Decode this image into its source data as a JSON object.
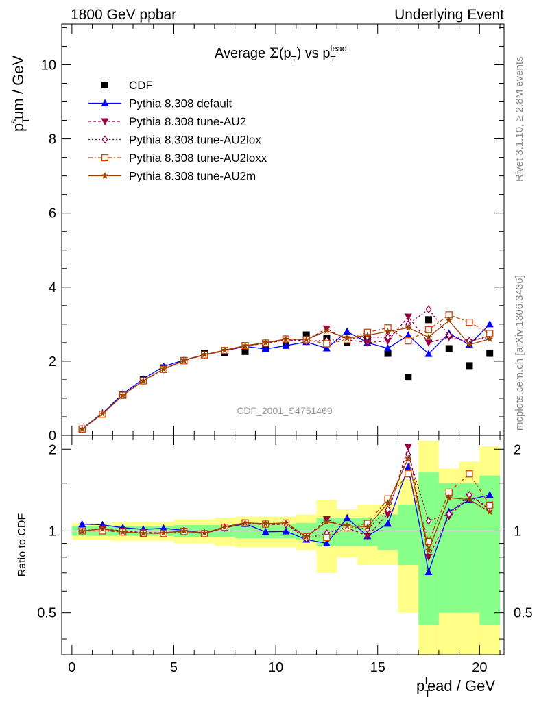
{
  "header": {
    "left": "1800 GeV ppbar",
    "right": "Underlying Event",
    "rivet": "Rivet 3.1.10, ≥ 2.8M events",
    "mcplots": "mcplots.cern.ch [arXiv:1306.3436]"
  },
  "chart_data": {
    "type": "line",
    "title": "Average Σ(pT) vs pT lead",
    "analysis_label": "CDF_2001_S4751469",
    "ylabel": "pT sum / GeV",
    "xlabel": "pT lead / GeV",
    "ratio_ylabel": "Ratio to CDF",
    "xlim": [
      -0.5,
      21.2
    ],
    "ylim": [
      0,
      11.1
    ],
    "ratio_ylim": [
      0.35,
      2.25
    ],
    "xticks": [
      0,
      5,
      10,
      15,
      20
    ],
    "yticks": [
      0,
      2,
      4,
      6,
      8,
      10
    ],
    "ratio_yticks": [
      0.5,
      1,
      2
    ],
    "ratio_band_x_edges": [
      0,
      1,
      2,
      3,
      4,
      5,
      6,
      7,
      8,
      9,
      10,
      11,
      12,
      13,
      14,
      15,
      16,
      17,
      18,
      19,
      20,
      21
    ],
    "ratio_band_green": [
      [
        0.96,
        1.04
      ],
      [
        0.96,
        1.04
      ],
      [
        0.96,
        1.04
      ],
      [
        0.96,
        1.04
      ],
      [
        0.96,
        1.04
      ],
      [
        0.95,
        1.05
      ],
      [
        0.95,
        1.05
      ],
      [
        0.95,
        1.05
      ],
      [
        0.94,
        1.06
      ],
      [
        0.94,
        1.06
      ],
      [
        0.94,
        1.06
      ],
      [
        0.93,
        1.07
      ],
      [
        0.88,
        1.12
      ],
      [
        0.88,
        1.12
      ],
      [
        0.88,
        1.12
      ],
      [
        0.85,
        1.15
      ],
      [
        0.75,
        1.25
      ],
      [
        0.45,
        1.65
      ],
      [
        0.5,
        1.5
      ],
      [
        0.5,
        1.5
      ],
      [
        0.45,
        1.6
      ]
    ],
    "ratio_band_yellow": [
      [
        0.93,
        1.07
      ],
      [
        0.93,
        1.07
      ],
      [
        0.92,
        1.08
      ],
      [
        0.92,
        1.08
      ],
      [
        0.92,
        1.08
      ],
      [
        0.9,
        1.1
      ],
      [
        0.9,
        1.1
      ],
      [
        0.88,
        1.12
      ],
      [
        0.87,
        1.13
      ],
      [
        0.87,
        1.13
      ],
      [
        0.87,
        1.13
      ],
      [
        0.85,
        1.15
      ],
      [
        0.7,
        1.3
      ],
      [
        0.8,
        1.2
      ],
      [
        0.75,
        1.25
      ],
      [
        0.75,
        1.25
      ],
      [
        0.5,
        1.55
      ],
      [
        0.3,
        2.15
      ],
      [
        0.35,
        1.7
      ],
      [
        0.35,
        1.8
      ],
      [
        0.25,
        2.05
      ]
    ],
    "series": [
      {
        "name": "CDF",
        "color": "#000000",
        "marker": "square-filled",
        "dash": "none",
        "x": [
          0.5,
          1.5,
          2.5,
          3.5,
          4.5,
          5.5,
          6.5,
          7.5,
          8.5,
          9.5,
          10.5,
          11.5,
          12.5,
          13.5,
          14.5,
          15.5,
          16.5,
          17.5,
          18.5,
          19.5,
          20.5
        ],
        "y": [
          0.17,
          0.57,
          1.09,
          1.5,
          1.82,
          2.02,
          2.22,
          2.22,
          2.26,
          2.35,
          2.43,
          2.71,
          2.61,
          2.51,
          2.61,
          2.21,
          1.57,
          3.12,
          2.34,
          1.88,
          2.21
        ]
      },
      {
        "name": "Pythia 8.308 default",
        "color": "#0000ff",
        "marker": "triangle-up-filled",
        "dash": "none",
        "x": [
          0.5,
          1.5,
          2.5,
          3.5,
          4.5,
          5.5,
          6.5,
          7.5,
          8.5,
          9.5,
          10.5,
          11.5,
          12.5,
          13.5,
          14.5,
          15.5,
          16.5,
          17.5,
          18.5,
          19.5,
          20.5
        ],
        "y": [
          0.18,
          0.6,
          1.12,
          1.52,
          1.86,
          2.03,
          2.18,
          2.28,
          2.4,
          2.33,
          2.42,
          2.52,
          2.35,
          2.8,
          2.5,
          2.35,
          2.7,
          2.2,
          2.75,
          2.45,
          3.0
        ]
      },
      {
        "name": "Pythia 8.308 tune-AU2",
        "color": "#990044",
        "marker": "triangle-down-filled",
        "dash": "4,3",
        "x": [
          0.5,
          1.5,
          2.5,
          3.5,
          4.5,
          5.5,
          6.5,
          7.5,
          8.5,
          9.5,
          10.5,
          11.5,
          12.5,
          13.5,
          14.5,
          15.5,
          16.5,
          17.5,
          18.5,
          19.5,
          20.5
        ],
        "y": [
          0.17,
          0.58,
          1.09,
          1.48,
          1.79,
          2.02,
          2.17,
          2.28,
          2.41,
          2.48,
          2.57,
          2.57,
          2.88,
          2.58,
          2.5,
          2.55,
          3.2,
          2.5,
          2.65,
          2.52,
          2.7
        ]
      },
      {
        "name": "Pythia 8.308 tune-AU2lox",
        "color": "#990044",
        "marker": "diamond-open",
        "dash": "2,3",
        "x": [
          0.5,
          1.5,
          2.5,
          3.5,
          4.5,
          5.5,
          6.5,
          7.5,
          8.5,
          9.5,
          10.5,
          11.5,
          12.5,
          13.5,
          14.5,
          15.5,
          16.5,
          17.5,
          18.5,
          19.5,
          20.5
        ],
        "y": [
          0.17,
          0.58,
          1.08,
          1.47,
          1.78,
          2.02,
          2.17,
          2.28,
          2.41,
          2.49,
          2.57,
          2.54,
          2.56,
          2.6,
          2.65,
          2.65,
          3.0,
          3.4,
          2.7,
          2.55,
          2.65
        ]
      },
      {
        "name": "Pythia 8.308 tune-AU2loxx",
        "color": "#cc4400",
        "marker": "square-open",
        "dash": "6,3,2,3",
        "x": [
          0.5,
          1.5,
          2.5,
          3.5,
          4.5,
          5.5,
          6.5,
          7.5,
          8.5,
          9.5,
          10.5,
          11.5,
          12.5,
          13.5,
          14.5,
          15.5,
          16.5,
          17.5,
          18.5,
          19.5,
          20.5
        ],
        "y": [
          0.17,
          0.57,
          1.08,
          1.47,
          1.78,
          2.01,
          2.17,
          2.29,
          2.42,
          2.49,
          2.6,
          2.58,
          2.47,
          2.58,
          2.78,
          2.9,
          2.55,
          2.85,
          3.25,
          3.05,
          2.75
        ]
      },
      {
        "name": "Pythia 8.308 tune-AU2m",
        "color": "#994400",
        "marker": "star",
        "dash": "none",
        "x": [
          0.5,
          1.5,
          2.5,
          3.5,
          4.5,
          5.5,
          6.5,
          7.5,
          8.5,
          9.5,
          10.5,
          11.5,
          12.5,
          13.5,
          14.5,
          15.5,
          16.5,
          17.5,
          18.5,
          19.5,
          20.5
        ],
        "y": [
          0.17,
          0.58,
          1.08,
          1.47,
          1.79,
          2.02,
          2.18,
          2.3,
          2.42,
          2.5,
          2.6,
          2.58,
          2.82,
          2.62,
          2.7,
          2.8,
          2.9,
          2.65,
          3.1,
          2.45,
          2.6
        ]
      }
    ]
  }
}
